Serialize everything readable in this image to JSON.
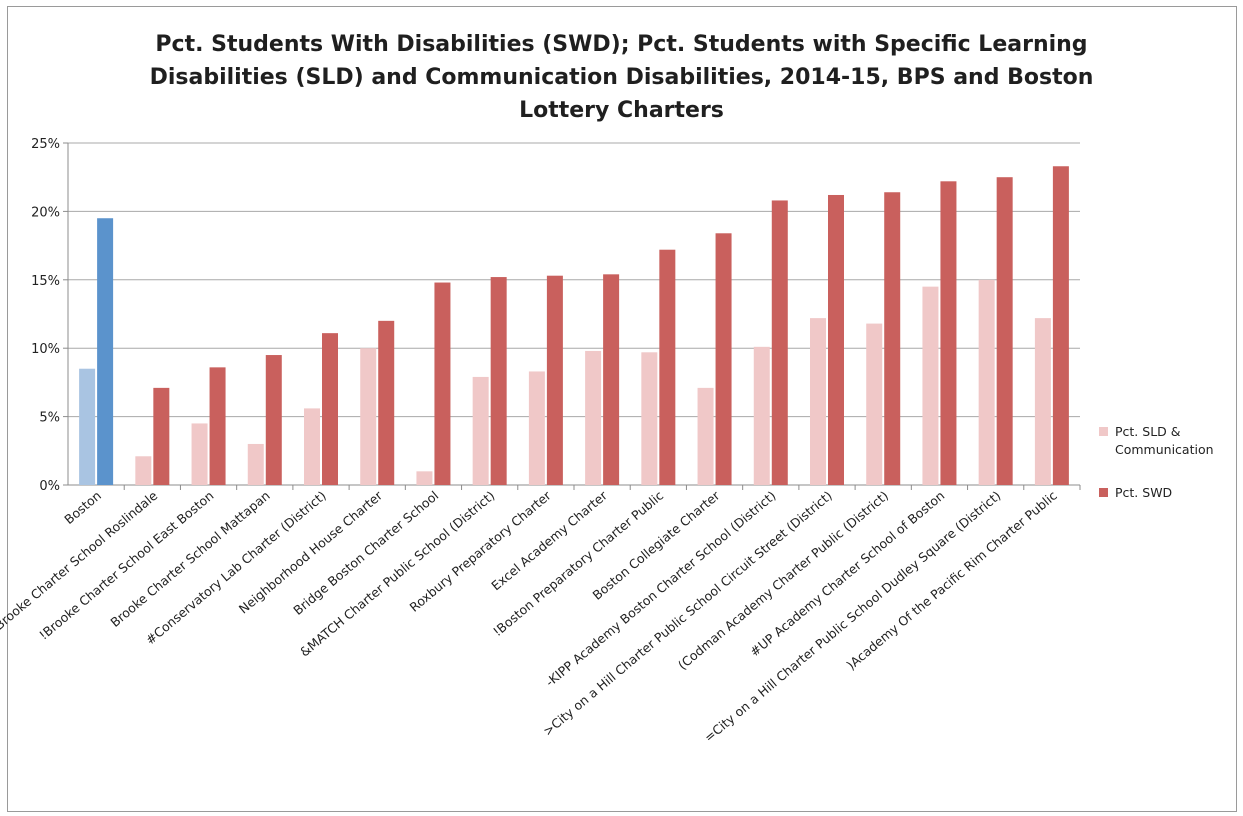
{
  "chart_data": {
    "type": "bar",
    "title_lines": [
      "Pct. Students With Disabilities (SWD); Pct. Students with Specific Learning",
      "Disabilities (SLD) and Communication Disabilities, 2014-15, BPS and Boston",
      "Lottery Charters"
    ],
    "categories": [
      "Boston",
      "!Brooke Charter School Roslindale",
      "!Brooke Charter School East Boston",
      "Brooke Charter School Mattapan",
      "#Conservatory Lab Charter (District)",
      "Neighborhood House Charter",
      "Bridge Boston Charter School",
      "&MATCH Charter Public School (District)",
      "Roxbury Preparatory Charter",
      "Excel Academy Charter",
      "!Boston Preparatory Charter Public",
      "Boston Collegiate Charter",
      "-KIPP Academy Boston Charter School (District)",
      ">City on a Hill Charter Public School Circuit Street (District)",
      "(Codman Academy Charter Public (District)",
      "#UP Academy Charter School of Boston",
      "=City on a Hill Charter Public School Dudley Square (District)",
      ")Academy Of the Pacific Rim Charter Public"
    ],
    "series": [
      {
        "name": "Pct. SLD & Communication",
        "color": "#f0c8c8",
        "highlight_color": "#a9c4e2",
        "values": [
          8.5,
          2.1,
          4.5,
          3.0,
          5.6,
          10.0,
          1.0,
          7.9,
          8.3,
          9.8,
          9.7,
          7.1,
          10.1,
          12.2,
          11.8,
          14.5,
          15.0,
          12.2
        ]
      },
      {
        "name": "Pct. SWD",
        "color": "#c9605d",
        "highlight_color": "#5b93cc",
        "values": [
          19.5,
          7.1,
          8.6,
          9.5,
          11.1,
          12.0,
          14.8,
          15.2,
          15.3,
          15.4,
          17.2,
          18.4,
          20.8,
          21.2,
          21.4,
          22.2,
          22.5,
          23.3
        ]
      }
    ],
    "highlight_category_index": 0,
    "y_ticks": [
      "0%",
      "5%",
      "10%",
      "15%",
      "20%",
      "25%"
    ],
    "ylim": [
      0,
      25
    ],
    "grid": true,
    "legend_position": "right"
  }
}
